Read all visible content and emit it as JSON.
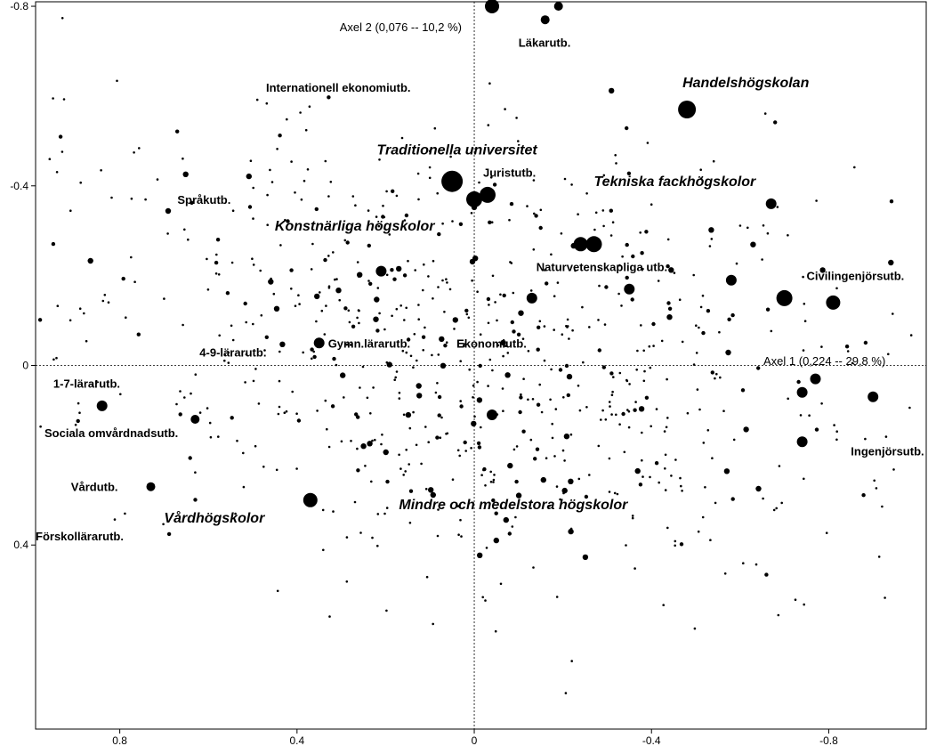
{
  "chart_data": {
    "type": "scatter",
    "title": "",
    "x_reversed": true,
    "y_reversed": true,
    "xlim": [
      0.99,
      -1.02
    ],
    "ylim": [
      -0.81,
      0.81
    ],
    "x_ticks": [
      0.8,
      0.4,
      0,
      -0.4,
      -0.8
    ],
    "x_tick_labels": [
      "0.8",
      "0.4",
      "0",
      "-0.4",
      "-0.8"
    ],
    "y_ticks": [
      -0.8,
      -0.4,
      0,
      0.4
    ],
    "y_tick_labels": [
      "-0.8",
      "-0.4",
      "0",
      "0.4"
    ],
    "axis1_label": "Axel 1 (0,224 -- 29,8 %)",
    "axis2_label": "Axel 2 (0,076 -- 10,2 %)",
    "zero_lines": "dotted",
    "grid": false,
    "field_labels": [
      {
        "text": "Läkarutb.",
        "x": -0.1,
        "y": -0.71
      },
      {
        "text": "Internationell ekonomiutb.",
        "x": 0.47,
        "y": -0.61
      },
      {
        "text": "Juristutb.",
        "x": -0.02,
        "y": -0.42
      },
      {
        "text": "Språkutb.",
        "x": 0.67,
        "y": -0.36
      },
      {
        "text": "Naturvetenskapliga utb.",
        "x": -0.14,
        "y": -0.21
      },
      {
        "text": "Civilingenjörsutb.",
        "x": -0.75,
        "y": -0.19
      },
      {
        "text": "Gymn.lärarutb.",
        "x": 0.33,
        "y": -0.04
      },
      {
        "text": "Ekonomiutb.",
        "x": 0.04,
        "y": -0.04
      },
      {
        "text": "4-9-lärarutb.",
        "x": 0.62,
        "y": -0.02
      },
      {
        "text": "1-7-lärarutb.",
        "x": 0.95,
        "y": 0.05
      },
      {
        "text": "Sociala omvårdnadsutb.",
        "x": 0.97,
        "y": 0.16
      },
      {
        "text": "Ingenjörsutb.",
        "x": -0.85,
        "y": 0.2
      },
      {
        "text": "Vårdutb.",
        "x": 0.91,
        "y": 0.28
      },
      {
        "text": "Förskollärarutb.",
        "x": 0.99,
        "y": 0.39
      }
    ],
    "institution_labels": [
      {
        "text": "Handelshögskolan",
        "x": -0.47,
        "y": -0.62
      },
      {
        "text": "Traditionella universitet",
        "x": 0.22,
        "y": -0.47
      },
      {
        "text": "Tekniska fackhögskolor",
        "x": -0.27,
        "y": -0.4
      },
      {
        "text": "Konstnärliga högskolor",
        "x": 0.45,
        "y": -0.3
      },
      {
        "text": "Mindre och medelstora högskolor",
        "x": 0.17,
        "y": 0.32
      },
      {
        "text": "Vårdhögskolor",
        "x": 0.7,
        "y": 0.35
      }
    ],
    "large_points": [
      {
        "x": -0.04,
        "y": -0.8
      },
      {
        "x": -0.16,
        "y": -0.77
      },
      {
        "x": -0.19,
        "y": -0.8
      },
      {
        "x": -0.48,
        "y": -0.57
      },
      {
        "x": 0.05,
        "y": -0.41
      },
      {
        "x": -0.03,
        "y": -0.38
      },
      {
        "x": 0.0,
        "y": -0.37
      },
      {
        "x": -0.24,
        "y": -0.27
      },
      {
        "x": -0.27,
        "y": -0.27
      },
      {
        "x": -0.7,
        "y": -0.15
      },
      {
        "x": -0.81,
        "y": -0.14
      },
      {
        "x": 0.37,
        "y": 0.3
      },
      {
        "x": 0.84,
        "y": 0.09
      },
      {
        "x": -0.77,
        "y": 0.03
      },
      {
        "x": -0.04,
        "y": 0.11
      },
      {
        "x": -0.74,
        "y": 0.17
      },
      {
        "x": 0.35,
        "y": -0.05
      },
      {
        "x": 0.21,
        "y": -0.21
      },
      {
        "x": -0.13,
        "y": -0.15
      },
      {
        "x": -0.35,
        "y": -0.17
      },
      {
        "x": -0.58,
        "y": -0.19
      },
      {
        "x": -0.67,
        "y": -0.36
      },
      {
        "x": -0.9,
        "y": 0.07
      },
      {
        "x": -0.74,
        "y": 0.06
      },
      {
        "x": 0.63,
        "y": 0.12
      },
      {
        "x": 0.73,
        "y": 0.27
      }
    ],
    "small_points_note": "several hundred unlabeled small points (individual students) spread over the plane"
  }
}
